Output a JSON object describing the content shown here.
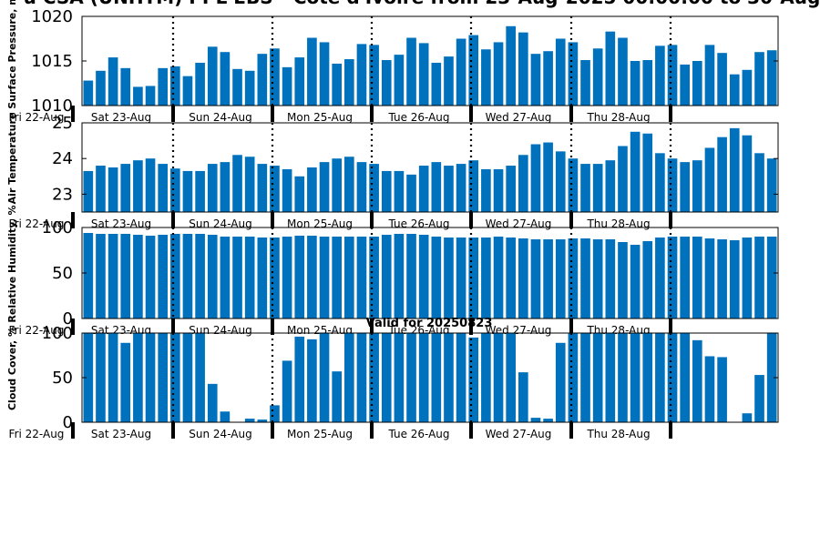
{
  "title": "u CSA (UNHTM) PPL EBS - Cote d'Ivoire from 23-Aug-2025 00:00:00 to 30-Aug",
  "valid_label": "Valid for 20250823",
  "colors": {
    "bar": "#0072BD",
    "axis": "#000000"
  },
  "chart_data": [
    {
      "type": "bar",
      "ylabel": "Surface Pressure, m",
      "ylim": [
        1010,
        1020
      ],
      "yticks": [
        1010,
        1015,
        1020
      ],
      "xticks": [
        "Fri 22-Aug",
        "Sat 23-Aug",
        "Sun 24-Aug",
        "Mon 25-Aug",
        "Tue 26-Aug",
        "Wed 27-Aug",
        "Thu 28-Aug"
      ],
      "values": [
        1012.8,
        1013.9,
        1015.4,
        1014.2,
        1012.1,
        1012.2,
        1014.2,
        1014.4,
        1013.3,
        1014.8,
        1016.6,
        1016.0,
        1014.1,
        1013.9,
        1015.8,
        1016.4,
        1014.3,
        1015.4,
        1017.6,
        1017.1,
        1014.7,
        1015.2,
        1016.9,
        1016.8,
        1015.1,
        1015.7,
        1017.6,
        1017.0,
        1014.8,
        1015.5,
        1017.5,
        1017.9,
        1016.3,
        1017.1,
        1018.9,
        1018.2,
        1015.8,
        1016.1,
        1017.5,
        1017.1,
        1015.1,
        1016.4,
        1018.3,
        1017.6,
        1015.0,
        1015.1,
        1016.7,
        1016.8,
        1014.6,
        1015.0,
        1016.8,
        1015.9,
        1013.5,
        1014.0,
        1016.0,
        1016.2
      ]
    },
    {
      "type": "bar",
      "ylabel": "Air Temperature",
      "ylim": [
        22.5,
        25
      ],
      "yticks": [
        23,
        24,
        25
      ],
      "xticks": [
        "Fri 22-Aug",
        "Sat 23-Aug",
        "Sun 24-Aug",
        "Mon 25-Aug",
        "Tue 26-Aug",
        "Wed 27-Aug",
        "Thu 28-Aug"
      ],
      "values": [
        23.65,
        23.8,
        23.75,
        23.85,
        23.95,
        24.0,
        23.85,
        23.72,
        23.65,
        23.65,
        23.85,
        23.9,
        24.1,
        24.05,
        23.85,
        23.8,
        23.7,
        23.5,
        23.75,
        23.9,
        24.0,
        24.05,
        23.9,
        23.85,
        23.65,
        23.65,
        23.55,
        23.8,
        23.9,
        23.8,
        23.85,
        23.95,
        23.7,
        23.7,
        23.8,
        24.1,
        24.4,
        24.45,
        24.2,
        24.0,
        23.85,
        23.85,
        23.95,
        24.35,
        24.75,
        24.7,
        24.15,
        24.0,
        23.9,
        23.95,
        24.3,
        24.6,
        24.85,
        24.65,
        24.15,
        24.0
      ]
    },
    {
      "type": "bar",
      "ylabel": "Relative Humidity, %",
      "ylim": [
        0,
        100
      ],
      "yticks": [
        0,
        50,
        100
      ],
      "xticks": [
        "Fri 22-Aug",
        "Sat 23-Aug",
        "Sun 24-Aug",
        "Mon 25-Aug",
        "Tue 26-Aug",
        "Wed 27-Aug",
        "Thu 28-Aug"
      ],
      "values": [
        94,
        93,
        93,
        93,
        92,
        91,
        92,
        93,
        93,
        93,
        92,
        90,
        90,
        90,
        89,
        89,
        90,
        91,
        91,
        90,
        90,
        90,
        90,
        90,
        92,
        93,
        93,
        92,
        90,
        89,
        89,
        89,
        89,
        90,
        89,
        88,
        87,
        87,
        87,
        88,
        88,
        87,
        87,
        84,
        81,
        85,
        89,
        90,
        90,
        90,
        88,
        87,
        86,
        89,
        90,
        90
      ]
    },
    {
      "type": "bar",
      "ylabel": "Cloud Cover, %",
      "ylim": [
        0,
        100
      ],
      "yticks": [
        0,
        50,
        100
      ],
      "xticks": [
        "Fri 22-Aug",
        "Sat 23-Aug",
        "Sun 24-Aug",
        "Mon 25-Aug",
        "Tue 26-Aug",
        "Wed 27-Aug",
        "Thu 28-Aug"
      ],
      "values": [
        100,
        100,
        100,
        89,
        100,
        100,
        100,
        100,
        100,
        100,
        43,
        12,
        0,
        4,
        3,
        19,
        69,
        96,
        93,
        100,
        57,
        100,
        100,
        100,
        100,
        100,
        100,
        100,
        100,
        100,
        100,
        95,
        100,
        100,
        100,
        56,
        5,
        4,
        89,
        100,
        100,
        100,
        100,
        100,
        100,
        100,
        100,
        100,
        100,
        92,
        74,
        73,
        0,
        10,
        53,
        100
      ]
    }
  ]
}
